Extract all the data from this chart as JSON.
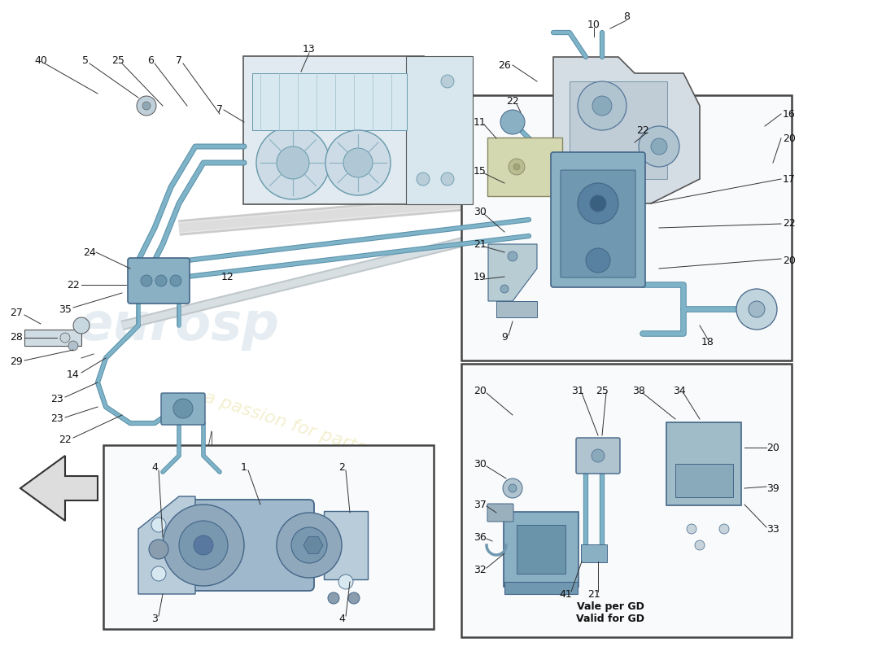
{
  "bg_color": "#ffffff",
  "blue_hose": "#7fb3c8",
  "blue_hose_dark": "#5a91aa",
  "blue_hose_light": "#aed0e0",
  "part_gray": "#c8d4dc",
  "part_dark": "#8a9daa",
  "part_light": "#dce8ee",
  "line_thin": "#555555",
  "line_thick": "#333333",
  "text_color": "#111111",
  "watermark_blue": "#ccdde6",
  "watermark_yellow": "#e8e0a0",
  "box_bg": "#f8fafb",
  "box_border": "#444444",
  "label_fs": 9,
  "note_fs": 9,
  "fig_w": 11.0,
  "fig_h": 8.0,
  "dpi": 100,
  "xlim": [
    0,
    110
  ],
  "ylim": [
    0,
    80
  ]
}
